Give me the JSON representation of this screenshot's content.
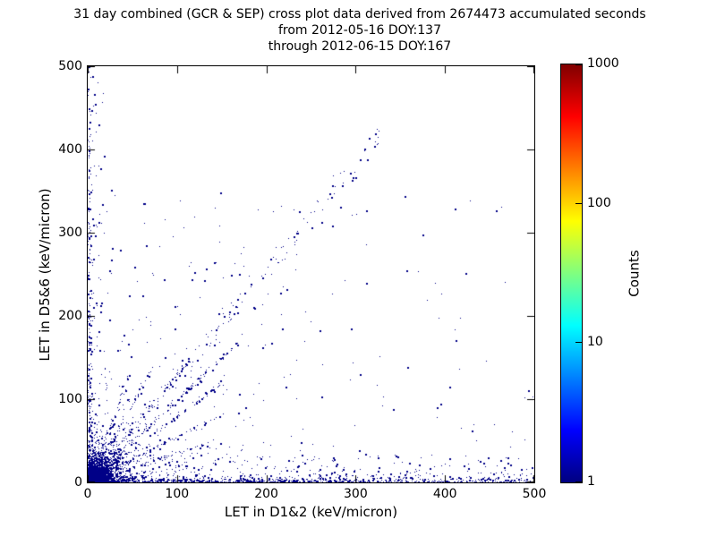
{
  "chart_data": {
    "type": "scatter",
    "title": "31 day combined (GCR & SEP) cross plot data derived from 2674473 accumulated seconds",
    "subtitle1": "from 2012-05-16 DOY:137",
    "subtitle2": "through 2012-06-15 DOY:167",
    "xlabel": "LET in D1&2 (keV/micron)",
    "ylabel": "LET in D5&6 (keV/micron)",
    "xlim": [
      0,
      500
    ],
    "ylim": [
      0,
      500
    ],
    "xticks": [
      0,
      100,
      200,
      300,
      400,
      500
    ],
    "yticks": [
      0,
      100,
      200,
      300,
      400,
      500
    ],
    "grid": false,
    "background_color": "#ffffff",
    "point_color": "#000087",
    "colorbar": {
      "label": "Counts",
      "scale": "log",
      "min": 1,
      "max": 1000,
      "ticks": [
        1,
        10,
        100,
        1000
      ],
      "colormap": "jet",
      "stops": [
        [
          0,
          "#000080"
        ],
        [
          0.125,
          "#0000ff"
        ],
        [
          0.375,
          "#00ffff"
        ],
        [
          0.625,
          "#ffff00"
        ],
        [
          0.875,
          "#ff0000"
        ],
        [
          1,
          "#800000"
        ]
      ]
    },
    "hotspot_gradient": {
      "radius_px": 17,
      "stops": [
        [
          0,
          "#8b0000"
        ],
        [
          0.1,
          "#ee1000"
        ],
        [
          0.2,
          "#ff8c00"
        ],
        [
          0.31,
          "#ffe800"
        ],
        [
          0.43,
          "#66ee44"
        ],
        [
          0.56,
          "#00dddd"
        ],
        [
          0.7,
          "#0077ff"
        ],
        [
          0.85,
          "#0011dd"
        ],
        [
          1,
          "#000090"
        ]
      ]
    },
    "seed": 42,
    "clusters": [
      {
        "type": "speckle",
        "count": 2600,
        "scale": 10,
        "max": 55
      },
      {
        "type": "speckle",
        "count": 800,
        "scale": 22,
        "max": 95
      },
      {
        "type": "ray",
        "slope": 0.35,
        "count": 90,
        "len": 150,
        "jitter": 2.5
      },
      {
        "type": "ray",
        "slope": 0.55,
        "count": 90,
        "len": 170,
        "jitter": 2.5
      },
      {
        "type": "ray",
        "slope": 0.8,
        "count": 110,
        "len": 190,
        "jitter": 2.5
      },
      {
        "type": "ray",
        "slope": 1.0,
        "count": 150,
        "len": 230,
        "jitter": 3
      },
      {
        "type": "ray",
        "slope": 1.3,
        "count": 100,
        "len": 180,
        "jitter": 3
      },
      {
        "type": "ray",
        "slope": 1.9,
        "count": 80,
        "len": 150,
        "jitter": 2.5
      },
      {
        "type": "ray",
        "slope": 2.8,
        "count": 60,
        "len": 130,
        "jitter": 2.5
      },
      {
        "type": "hband",
        "count": 1300,
        "xpow": 1.7,
        "yscale": 2.8,
        "extraFrac": 0.18,
        "extraMax": 30
      },
      {
        "type": "vband",
        "count": 300,
        "ypow": 2.1,
        "xscale": 2.4,
        "extraFrac": 0.15,
        "extraMax": 22
      },
      {
        "type": "diag",
        "count": 130,
        "x0": 40,
        "x1": 330,
        "xpow": 1.25,
        "slope": 1.28,
        "jitter": 14
      },
      {
        "type": "field",
        "count": 330,
        "xmax": 500,
        "xpow": 2.2,
        "ymax": 340,
        "ypow": 2.5
      },
      {
        "type": "field",
        "count": 120,
        "xmax": 270,
        "xpow": 1.5,
        "ymax": 270,
        "ypow": 1.8
      }
    ],
    "outliers": [
      [
        322,
        419
      ],
      [
        313,
        388
      ],
      [
        296,
        363
      ],
      [
        355,
        344
      ],
      [
        271,
        347
      ],
      [
        283,
        331
      ],
      [
        262,
        313
      ],
      [
        250,
        306
      ],
      [
        274,
        309
      ],
      [
        233,
        300
      ],
      [
        26,
        352
      ],
      [
        62,
        335
      ],
      [
        5,
        488
      ],
      [
        8,
        455
      ],
      [
        12,
        430
      ],
      [
        18,
        392
      ],
      [
        148,
        348
      ],
      [
        160,
        250
      ],
      [
        186,
        210
      ],
      [
        205,
        168
      ],
      [
        305,
        130
      ],
      [
        342,
        88
      ],
      [
        357,
        255
      ],
      [
        470,
        30
      ],
      [
        430,
        62
      ],
      [
        395,
        95
      ],
      [
        375,
        298
      ]
    ]
  }
}
